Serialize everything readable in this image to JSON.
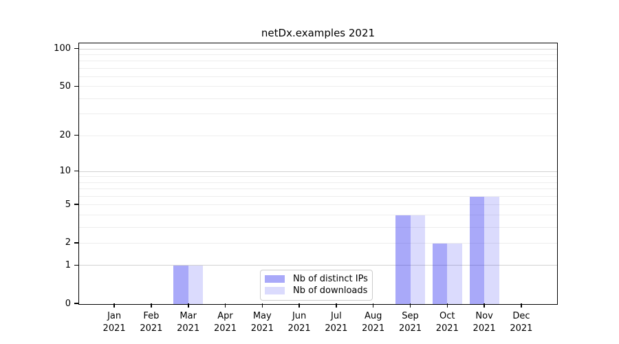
{
  "chart_data": {
    "type": "bar",
    "title": "netDx.examples 2021",
    "categories": [
      "Jan",
      "Feb",
      "Mar",
      "Apr",
      "May",
      "Jun",
      "Jul",
      "Aug",
      "Sep",
      "Oct",
      "Nov",
      "Dec"
    ],
    "category_sublabel": "2021",
    "series": [
      {
        "name": "Nb of distinct IPs",
        "color": "rgba(30,30,240,0.38)",
        "values": [
          0,
          0,
          1,
          0,
          0,
          0,
          0,
          0,
          4,
          2,
          6,
          0
        ]
      },
      {
        "name": "Nb of downloads",
        "color": "rgba(30,30,240,0.16)",
        "values": [
          0,
          0,
          1,
          0,
          0,
          0,
          0,
          0,
          4,
          2,
          6,
          0
        ]
      }
    ],
    "xlabel": "",
    "ylabel": "",
    "yscale": "log1p",
    "yticks": [
      0,
      1,
      2,
      5,
      10,
      20,
      50,
      100
    ],
    "ylim": [
      0,
      110
    ],
    "grid": "both",
    "legend_position": "lower center"
  },
  "colors": {
    "grid_major": "#d2d2d2",
    "grid_minor": "#ededed",
    "spine": "#000000",
    "text": "#000000",
    "legend_border": "#cccccc"
  }
}
